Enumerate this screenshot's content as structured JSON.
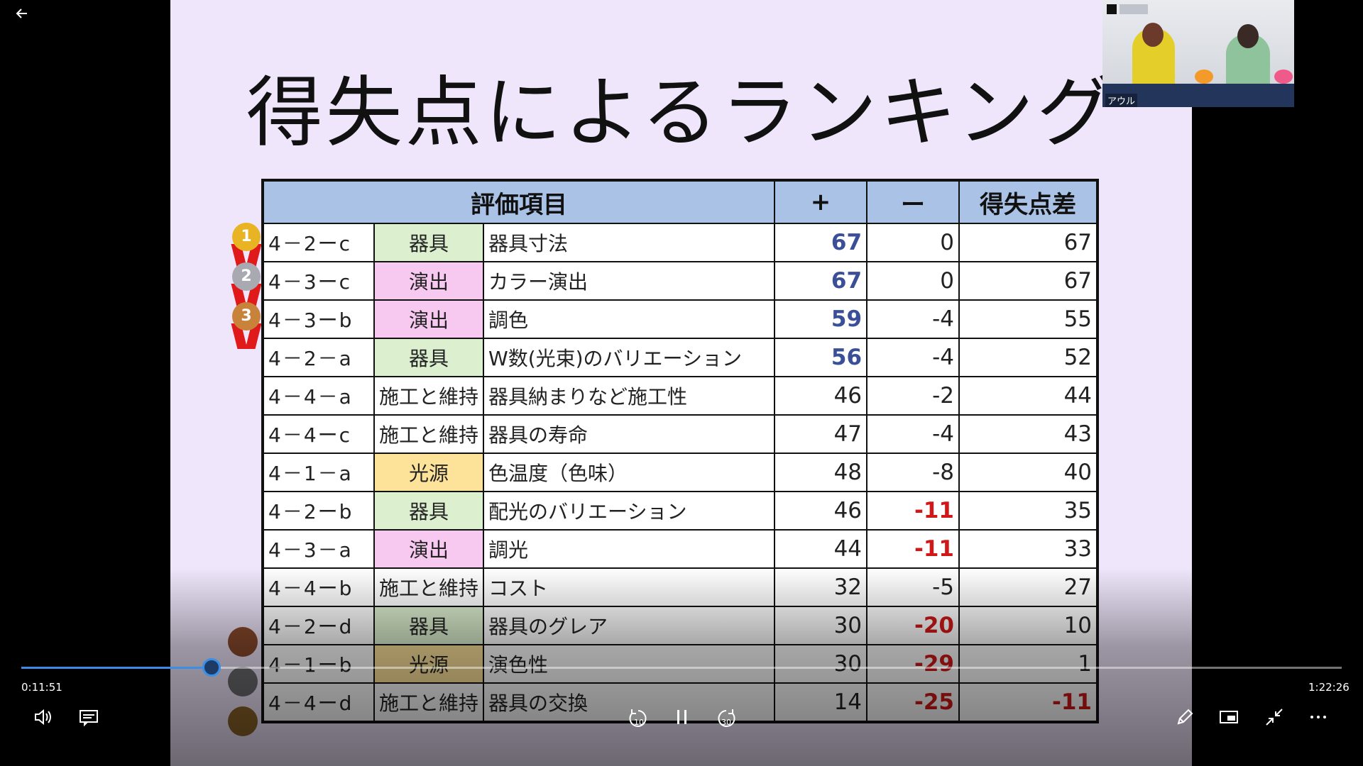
{
  "slide": {
    "title": "得失点によるランキング",
    "headers": {
      "item": "評価項目",
      "plus": "+",
      "minus": "ー",
      "diff": "得失点差"
    },
    "rows": [
      {
        "code": "4－2ーc",
        "category": "器具",
        "cat_color": "green",
        "name": "器具寸法",
        "plus": "67",
        "minus": "0",
        "diff": "67",
        "plus_style": "blue",
        "minus_style": "",
        "diff_style": ""
      },
      {
        "code": "4－3ーc",
        "category": "演出",
        "cat_color": "pink",
        "name": "カラー演出",
        "plus": "67",
        "minus": "0",
        "diff": "67",
        "plus_style": "blue",
        "minus_style": "",
        "diff_style": ""
      },
      {
        "code": "4－3ーb",
        "category": "演出",
        "cat_color": "pink",
        "name": "調色",
        "plus": "59",
        "minus": "-4",
        "diff": "55",
        "plus_style": "blue",
        "minus_style": "",
        "diff_style": ""
      },
      {
        "code": "4－2－a",
        "category": "器具",
        "cat_color": "green",
        "name": "W数(光束)のバリエーション",
        "plus": "56",
        "minus": "-4",
        "diff": "52",
        "plus_style": "blue",
        "minus_style": "",
        "diff_style": ""
      },
      {
        "code": "4－4－a",
        "category": "施工と維持",
        "cat_color": "white",
        "name": "器具納まりなど施工性",
        "plus": "46",
        "minus": "-2",
        "diff": "44",
        "plus_style": "",
        "minus_style": "",
        "diff_style": ""
      },
      {
        "code": "4－4ーc",
        "category": "施工と維持",
        "cat_color": "white",
        "name": "器具の寿命",
        "plus": "47",
        "minus": "-4",
        "diff": "43",
        "plus_style": "",
        "minus_style": "",
        "diff_style": ""
      },
      {
        "code": "4－1－a",
        "category": "光源",
        "cat_color": "yellow",
        "name": "色温度（色味）",
        "plus": "48",
        "minus": "-8",
        "diff": "40",
        "plus_style": "",
        "minus_style": "",
        "diff_style": ""
      },
      {
        "code": "4－2ーb",
        "category": "器具",
        "cat_color": "green",
        "name": "配光のバリエーション",
        "plus": "46",
        "minus": "-11",
        "diff": "35",
        "plus_style": "",
        "minus_style": "red",
        "diff_style": ""
      },
      {
        "code": "4－3－a",
        "category": "演出",
        "cat_color": "pink",
        "name": "調光",
        "plus": "44",
        "minus": "-11",
        "diff": "33",
        "plus_style": "",
        "minus_style": "red",
        "diff_style": ""
      },
      {
        "code": "4－4ーb",
        "category": "施工と維持",
        "cat_color": "white",
        "name": "コスト",
        "plus": "32",
        "minus": "-5",
        "diff": "27",
        "plus_style": "",
        "minus_style": "",
        "diff_style": ""
      },
      {
        "code": "4－2ーd",
        "category": "器具",
        "cat_color": "green",
        "name": "器具のグレア",
        "plus": "30",
        "minus": "-20",
        "diff": "10",
        "plus_style": "",
        "minus_style": "red",
        "diff_style": ""
      },
      {
        "code": "4－1ーb",
        "category": "光源",
        "cat_color": "yellow",
        "name": "演色性",
        "plus": "30",
        "minus": "-29",
        "diff": "1",
        "plus_style": "",
        "minus_style": "red",
        "diff_style": ""
      },
      {
        "code": "4－4ーd",
        "category": "施工と維持",
        "cat_color": "white",
        "name": "器具の交換",
        "plus": "14",
        "minus": "-25",
        "diff": "-11",
        "plus_style": "",
        "minus_style": "red",
        "diff_style": "red"
      }
    ],
    "top_medals": [
      {
        "rank": "1",
        "color": "#e8b423"
      },
      {
        "rank": "2",
        "color": "#a9a9b1"
      },
      {
        "rank": "3",
        "color": "#c9823a"
      }
    ],
    "bottom_medals": [
      {
        "color": "#8a4a2c"
      },
      {
        "color": "#6c6c70"
      },
      {
        "color": "#8a6228"
      }
    ]
  },
  "webcam": {
    "name_tag": "アウル"
  },
  "player": {
    "current_time": "0:11:51",
    "total_time": "1:22:26",
    "progress_fraction": 0.1437,
    "accent_color": "#3a8ee6",
    "icons": [
      "back-arrow-icon",
      "volume-icon",
      "subtitles-icon",
      "rewind-10-icon",
      "pause-icon",
      "forward-30-icon",
      "pen-icon",
      "miniview-icon",
      "exit-fullscreen-icon",
      "more-options-icon"
    ],
    "rewind_label": "10",
    "forward_label": "30"
  }
}
